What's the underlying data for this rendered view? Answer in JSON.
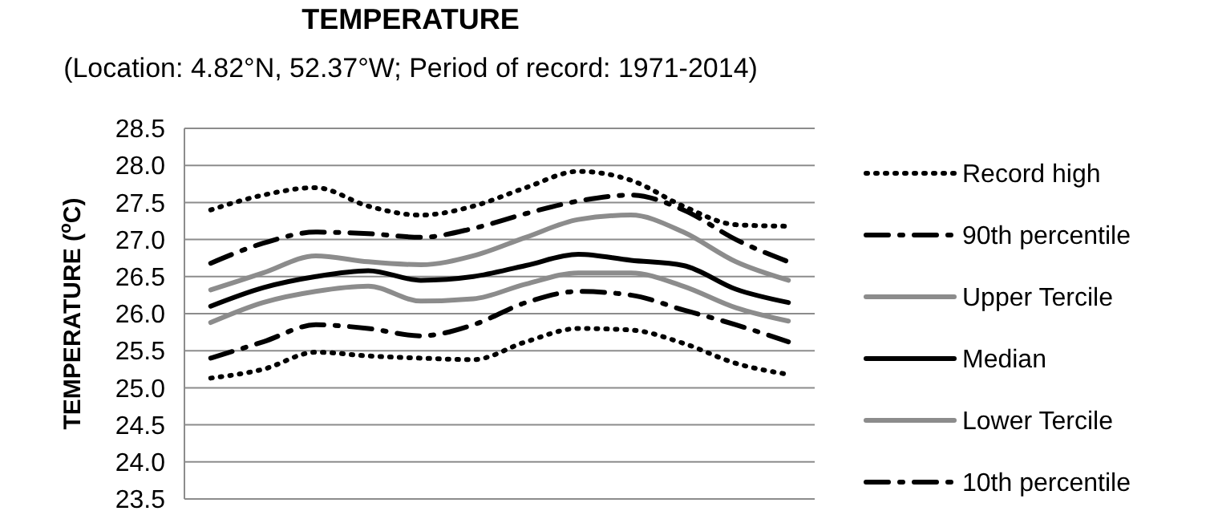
{
  "chart_data": {
    "type": "line",
    "title": "TEMPERATURE",
    "subtitle": "(Location: 4.82°N, 52.37°W; Period of record: 1971-2014)",
    "ylabel": "TEMPERATURE ($^{o}$C)",
    "categories": [
      null,
      null,
      null,
      null,
      null,
      null,
      null,
      null,
      null,
      null,
      null,
      null
    ],
    "ylim": [
      23.5,
      28.5
    ],
    "yticks": [
      {
        "value": 23.5,
        "label": "23.5"
      },
      {
        "value": 24,
        "label": "24.0"
      },
      {
        "value": 24.5,
        "label": "24.5"
      },
      {
        "value": 25,
        "label": "25.0"
      },
      {
        "value": 25.5,
        "label": "25.5"
      },
      {
        "value": 26,
        "label": "26.0"
      },
      {
        "value": 26.5,
        "label": "26.5"
      },
      {
        "value": 27,
        "label": "27.0"
      },
      {
        "value": 27.5,
        "label": "27.5"
      },
      {
        "value": 28,
        "label": "28.0"
      },
      {
        "value": 28.5,
        "label": "28.5"
      }
    ],
    "grid": "y",
    "legend": "right",
    "series": [
      {
        "name": "Record high",
        "color": "#000000",
        "line_style": "dotted",
        "values": [
          27.4,
          27.6,
          27.7,
          27.45,
          27.33,
          27.45,
          27.7,
          27.92,
          27.8,
          27.45,
          27.2,
          27.18
        ]
      },
      {
        "name": "90th percentile",
        "color": "#000000",
        "line_style": "dashed",
        "values": [
          26.68,
          26.95,
          27.1,
          27.08,
          27.03,
          27.15,
          27.35,
          27.52,
          27.6,
          27.4,
          27.0,
          26.7
        ]
      },
      {
        "name": "Upper Tercile",
        "color": "#8c8c8c",
        "line_style": "solid",
        "values": [
          26.32,
          26.55,
          26.78,
          26.7,
          26.66,
          26.78,
          27.03,
          27.27,
          27.33,
          27.1,
          26.7,
          26.45
        ]
      },
      {
        "name": "Median",
        "color": "#000000",
        "line_style": "solid",
        "values": [
          26.1,
          26.35,
          26.5,
          26.58,
          26.45,
          26.5,
          26.65,
          26.8,
          26.72,
          26.65,
          26.33,
          26.15
        ]
      },
      {
        "name": "Lower Tercile",
        "color": "#8c8c8c",
        "line_style": "solid",
        "values": [
          25.88,
          26.15,
          26.3,
          26.37,
          26.17,
          26.2,
          26.4,
          26.55,
          26.55,
          26.37,
          26.08,
          25.9
        ]
      },
      {
        "name": "10th percentile",
        "color": "#000000",
        "line_style": "dashed",
        "values": [
          25.4,
          25.62,
          25.85,
          25.8,
          25.7,
          25.85,
          26.15,
          26.3,
          26.25,
          26.05,
          25.85,
          25.62
        ]
      },
      {
        "color": "#000000",
        "line_style": "dotted",
        "values": [
          25.13,
          25.25,
          25.48,
          25.43,
          25.4,
          25.38,
          25.62,
          25.8,
          25.78,
          25.6,
          25.33,
          25.18
        ]
      }
    ]
  }
}
